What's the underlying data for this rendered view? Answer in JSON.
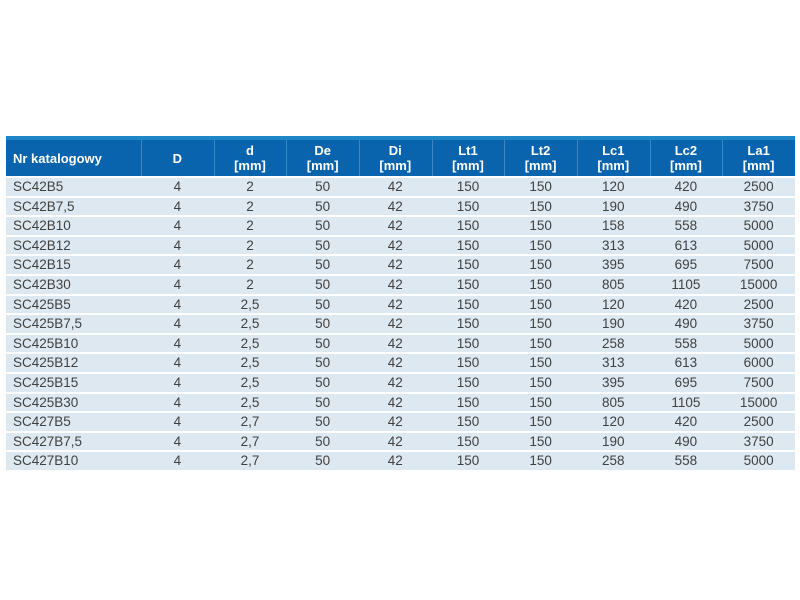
{
  "page": {
    "kind": "catalog-data-table"
  },
  "colors": {
    "header_background": "#0a64ad",
    "header_top_stripe": "#1e86c4",
    "header_text": "#ffffff",
    "row_background": "#dde8f1",
    "row_separator": "#ffffff",
    "body_text": "#414141",
    "page_background": "#ffffff"
  },
  "table": {
    "columns": [
      {
        "id": "catalog_number",
        "label": "Nr katalogowy",
        "unit": ""
      },
      {
        "id": "D",
        "label": "D",
        "unit": ""
      },
      {
        "id": "d",
        "label": "d",
        "unit": "[mm]"
      },
      {
        "id": "De",
        "label": "De",
        "unit": "[mm]"
      },
      {
        "id": "Di",
        "label": "Di",
        "unit": "[mm]"
      },
      {
        "id": "Lt1",
        "label": "Lt1",
        "unit": "[mm]"
      },
      {
        "id": "Lt2",
        "label": "Lt2",
        "unit": "[mm]"
      },
      {
        "id": "Lc1",
        "label": "Lc1",
        "unit": "[mm]"
      },
      {
        "id": "Lc2",
        "label": "Lc2",
        "unit": "[mm]"
      },
      {
        "id": "La1",
        "label": "La1",
        "unit": "[mm]"
      }
    ],
    "rows": [
      [
        "SC42B5",
        "4",
        "2",
        "50",
        "42",
        "150",
        "150",
        "120",
        "420",
        "2500"
      ],
      [
        "SC42B7,5",
        "4",
        "2",
        "50",
        "42",
        "150",
        "150",
        "190",
        "490",
        "3750"
      ],
      [
        "SC42B10",
        "4",
        "2",
        "50",
        "42",
        "150",
        "150",
        "158",
        "558",
        "5000"
      ],
      [
        "SC42B12",
        "4",
        "2",
        "50",
        "42",
        "150",
        "150",
        "313",
        "613",
        "5000"
      ],
      [
        "SC42B15",
        "4",
        "2",
        "50",
        "42",
        "150",
        "150",
        "395",
        "695",
        "7500"
      ],
      [
        "SC42B30",
        "4",
        "2",
        "50",
        "42",
        "150",
        "150",
        "805",
        "1105",
        "15000"
      ],
      [
        "SC425B5",
        "4",
        "2,5",
        "50",
        "42",
        "150",
        "150",
        "120",
        "420",
        "2500"
      ],
      [
        "SC425B7,5",
        "4",
        "2,5",
        "50",
        "42",
        "150",
        "150",
        "190",
        "490",
        "3750"
      ],
      [
        "SC425B10",
        "4",
        "2,5",
        "50",
        "42",
        "150",
        "150",
        "258",
        "558",
        "5000"
      ],
      [
        "SC425B12",
        "4",
        "2,5",
        "50",
        "42",
        "150",
        "150",
        "313",
        "613",
        "6000"
      ],
      [
        "SC425B15",
        "4",
        "2,5",
        "50",
        "42",
        "150",
        "150",
        "395",
        "695",
        "7500"
      ],
      [
        "SC425B30",
        "4",
        "2,5",
        "50",
        "42",
        "150",
        "150",
        "805",
        "1105",
        "15000"
      ],
      [
        "SC427B5",
        "4",
        "2,7",
        "50",
        "42",
        "150",
        "150",
        "120",
        "420",
        "2500"
      ],
      [
        "SC427B7,5",
        "4",
        "2,7",
        "50",
        "42",
        "150",
        "150",
        "190",
        "490",
        "3750"
      ],
      [
        "SC427B10",
        "4",
        "2,7",
        "50",
        "42",
        "150",
        "150",
        "258",
        "558",
        "5000"
      ]
    ]
  }
}
